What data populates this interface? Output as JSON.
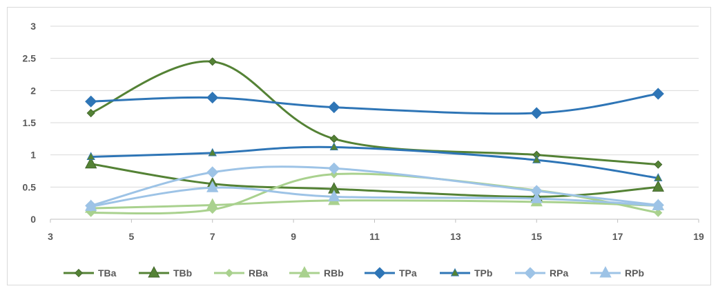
{
  "chart_data": {
    "type": "line",
    "smooth": true,
    "title": "",
    "xlabel": "",
    "ylabel": "",
    "xlim": [
      3,
      19
    ],
    "ylim": [
      0,
      3
    ],
    "x_ticks": [
      3,
      5,
      7,
      9,
      11,
      13,
      15,
      17,
      19
    ],
    "y_ticks": [
      0,
      0.5,
      1,
      1.5,
      2,
      2.5,
      3
    ],
    "y_tick_labels": [
      "0",
      "0.5",
      "1",
      "1.5",
      "2",
      "2.5",
      "3"
    ],
    "grid": "horizontal",
    "legend_position": "bottom",
    "x": [
      4,
      7,
      10,
      15,
      18
    ],
    "series": [
      {
        "name": "TBa",
        "values": [
          1.65,
          2.45,
          1.25,
          1.0,
          0.85
        ],
        "color": "#548235",
        "marker": "diamond",
        "marker_size": "small"
      },
      {
        "name": "TBb",
        "values": [
          0.86,
          0.55,
          0.47,
          0.35,
          0.5
        ],
        "color": "#548235",
        "marker": "triangle",
        "marker_size": "large"
      },
      {
        "name": "RBa",
        "values": [
          0.1,
          0.15,
          0.7,
          0.45,
          0.1
        ],
        "color": "#a9d18e",
        "marker": "diamond",
        "marker_size": "small"
      },
      {
        "name": "RBb",
        "values": [
          0.17,
          0.22,
          0.29,
          0.27,
          0.21
        ],
        "color": "#a9d18e",
        "marker": "triangle",
        "marker_size": "large"
      },
      {
        "name": "TPa",
        "values": [
          1.83,
          1.89,
          1.74,
          1.65,
          1.95
        ],
        "color": "#2e75b6",
        "marker": "diamond",
        "marker_size": "large"
      },
      {
        "name": "TPb",
        "values": [
          0.97,
          1.03,
          1.12,
          0.92,
          0.64
        ],
        "color": "#2e75b6",
        "marker": "triangle",
        "marker_size": "small",
        "marker_fill": "#548235"
      },
      {
        "name": "RPa",
        "values": [
          0.21,
          0.73,
          0.79,
          0.44,
          0.22
        ],
        "color": "#9dc3e6",
        "marker": "diamond",
        "marker_size": "large"
      },
      {
        "name": "RPb",
        "values": [
          0.2,
          0.49,
          0.35,
          0.32,
          0.21
        ],
        "color": "#9dc3e6",
        "marker": "triangle",
        "marker_size": "large"
      }
    ]
  }
}
